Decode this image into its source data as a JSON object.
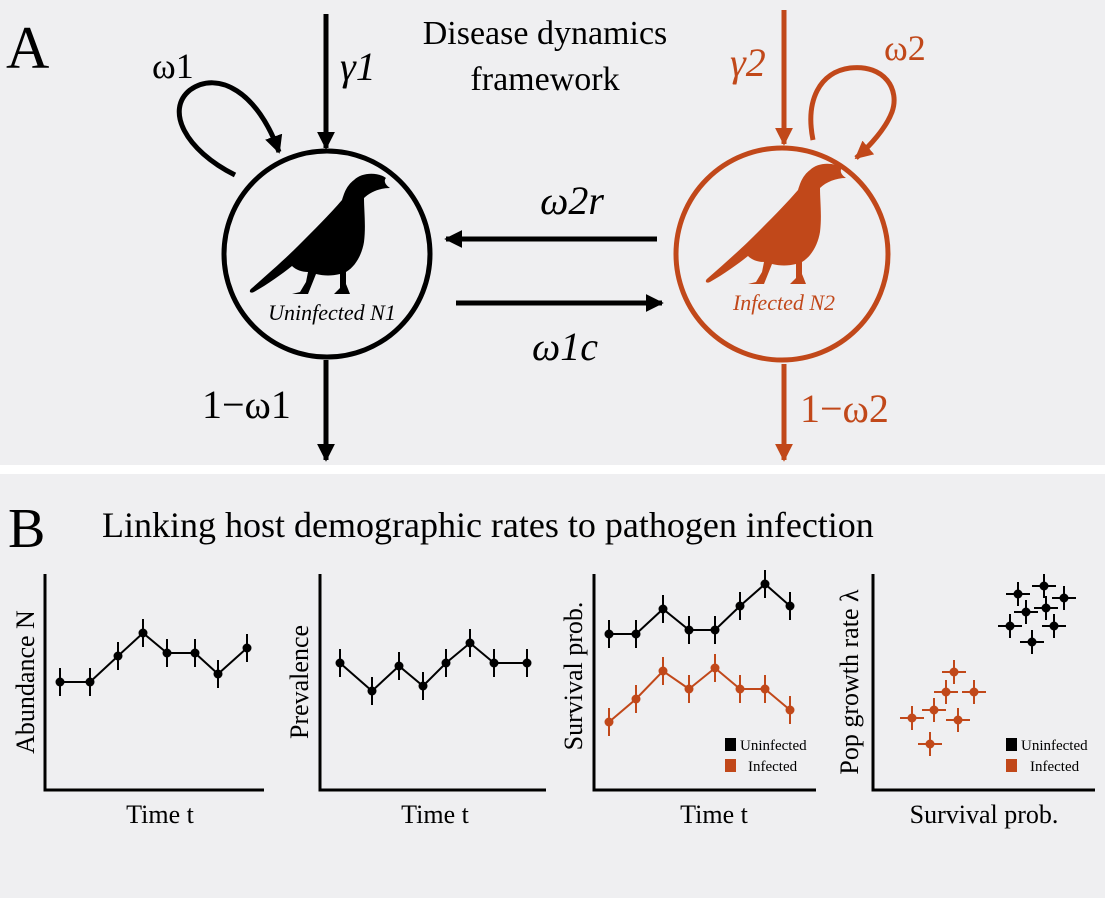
{
  "panel_a": {
    "letter": "A",
    "title_line1": "Disease dynamics",
    "title_line2": "framework",
    "omega1": "ω1",
    "gamma1": "γ1",
    "gamma2": "γ2",
    "omega2": "ω2",
    "omega2r": "ω2r",
    "omega1c": "ω1c",
    "surv1": "1−ω1",
    "surv2": "1−ω2",
    "uninfected_label": "Uninfected N1",
    "infected_label": "Infected N2",
    "colors": {
      "uninfected": "#000000",
      "infected": "#c1481a"
    }
  },
  "panel_b": {
    "letter": "B",
    "title": "Linking host demographic rates to pathogen infection",
    "legend": {
      "uninfected": "Uninfected",
      "infected": "Infected"
    },
    "plots": [
      {
        "ylabel": "Abundance N",
        "xlabel": "Time t"
      },
      {
        "ylabel": "Prevalence",
        "xlabel": "Time t"
      },
      {
        "ylabel": "Survival prob.",
        "xlabel": "Time t"
      },
      {
        "ylabel": "Pop growth rate λ",
        "xlabel": "Survival prob."
      }
    ]
  }
}
